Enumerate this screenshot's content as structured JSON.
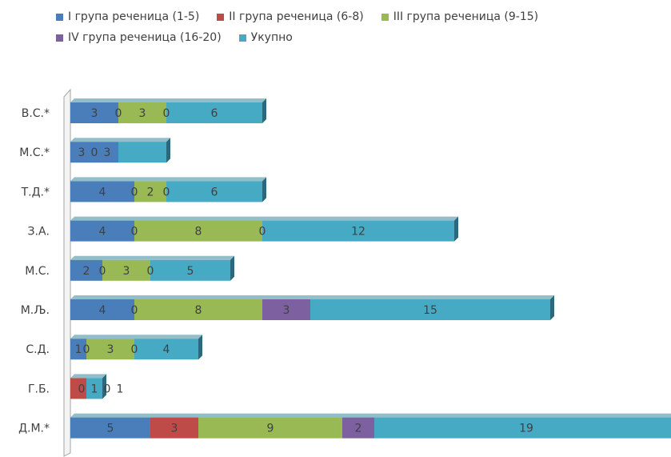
{
  "chart_data": {
    "type": "bar",
    "orientation": "horizontal",
    "stacked": true,
    "three_d": true,
    "categories": [
      "В.С.*",
      "М.С.*",
      "Т.Д.*",
      "З.А.",
      "М.С.",
      "М.Љ.",
      "С.Д.",
      "Г.Б.",
      "Д.М.*"
    ],
    "series": [
      {
        "name": "I група реченица (1-5)",
        "color": "#4a7ebb",
        "values": [
          3,
          3,
          4,
          4,
          2,
          4,
          1,
          0,
          5
        ]
      },
      {
        "name": "II група реченица (6-8)",
        "color": "#be4b48",
        "values": [
          0,
          0,
          0,
          0,
          0,
          0,
          0,
          1,
          3
        ]
      },
      {
        "name": "III група реченица (9-15)",
        "color": "#98b954",
        "values": [
          3,
          0,
          2,
          8,
          3,
          8,
          3,
          0,
          9
        ]
      },
      {
        "name": "IV група реченица (16-20)",
        "color": "#7d60a0",
        "values": [
          0,
          0,
          0,
          0,
          0,
          3,
          0,
          0,
          2
        ]
      },
      {
        "name": "Укупно",
        "color": "#46aac5",
        "values": [
          6,
          3,
          6,
          12,
          5,
          15,
          4,
          1,
          19
        ]
      }
    ],
    "data_labels": [
      [
        "3",
        "0",
        "3",
        "0",
        "6"
      ],
      [
        "3",
        "0",
        "3"
      ],
      [
        "4",
        "0",
        "2",
        "0",
        "6"
      ],
      [
        "4",
        "0",
        "8",
        "0",
        "12"
      ],
      [
        "2",
        "0",
        "3",
        "0",
        "5"
      ],
      [
        "4",
        "0",
        "8",
        "3",
        "15"
      ],
      [
        "1",
        "0",
        "3",
        "0",
        "4"
      ],
      [
        "0",
        "1",
        "0",
        "1"
      ],
      [
        "5",
        "3",
        "9",
        "2",
        "19"
      ]
    ],
    "legend_position": "top",
    "grid": false,
    "title": "",
    "xlabel": "",
    "ylabel": ""
  }
}
